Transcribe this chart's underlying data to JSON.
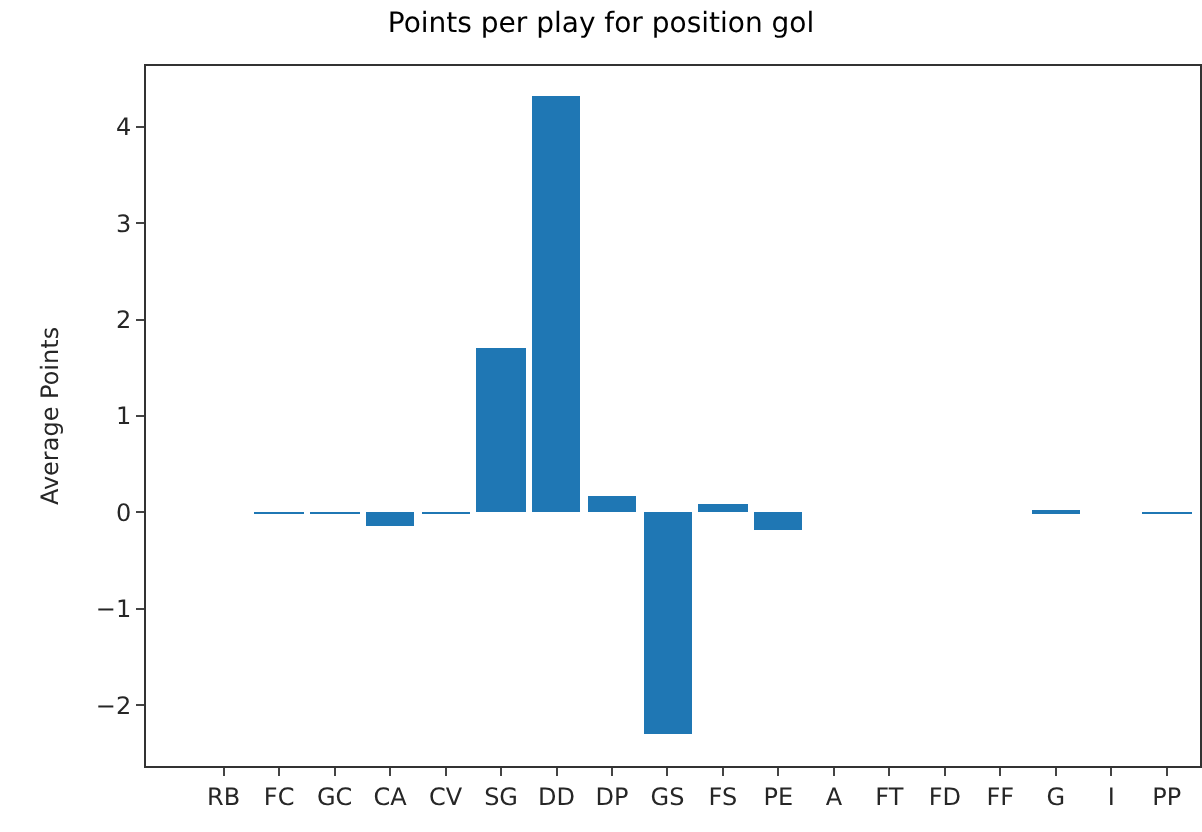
{
  "chart_data": {
    "type": "bar",
    "title": "Points per play for position gol",
    "ylabel": "Average Points",
    "categories": [
      "RB",
      "FC",
      "GC",
      "CA",
      "CV",
      "SG",
      "DD",
      "DP",
      "GS",
      "FS",
      "PE",
      "A",
      "FT",
      "FD",
      "FF",
      "G",
      "I",
      "PP"
    ],
    "values": [
      0,
      -0.01,
      -0.01,
      -0.15,
      -0.01,
      1.71,
      4.31,
      0.17,
      -2.29,
      0.08,
      -0.19,
      0,
      0,
      0,
      0,
      0.03,
      0,
      -0.01
    ],
    "color": "#1f77b4",
    "ylim": [
      -2.63,
      4.63
    ],
    "yticks": [
      -2,
      -1,
      0,
      1,
      2,
      3,
      4
    ]
  }
}
